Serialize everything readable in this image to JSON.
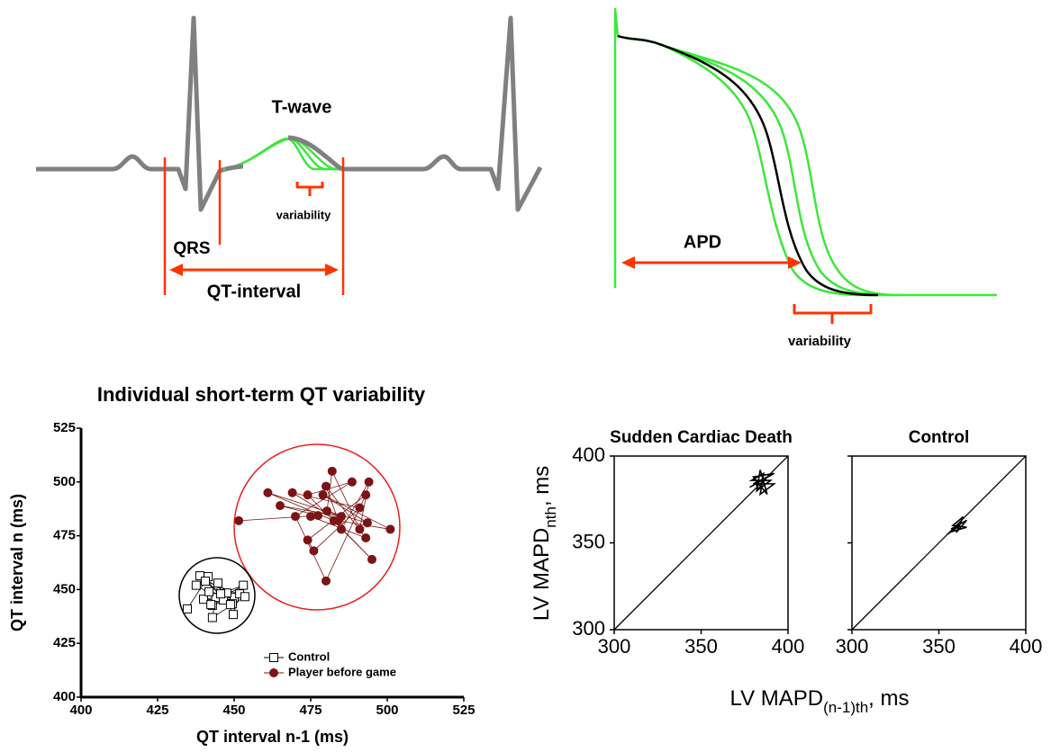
{
  "diagrams": {
    "ecg": {
      "wave_label": "T-wave",
      "variability_label": "variability",
      "qrs_label": "QRS",
      "interval_label": "QT-interval"
    },
    "action_potential": {
      "duration_label": "APD",
      "variability_label": "variability"
    }
  },
  "chart_data": [
    {
      "type": "scatter",
      "title": "Individual short-term QT variability",
      "xlabel": "QT interval n-1 (ms)",
      "ylabel": "QT interval n (ms)",
      "xlim": [
        400,
        525
      ],
      "ylim": [
        400,
        525
      ],
      "xticks": [
        400,
        425,
        450,
        475,
        500,
        525
      ],
      "yticks": [
        400,
        425,
        450,
        475,
        500,
        525
      ],
      "connected": true,
      "series": [
        {
          "name": "Control",
          "marker": "square",
          "color": "#000000",
          "x": [
            434.7,
            441.5,
            437.6,
            444,
            440,
            446.5,
            441.8,
            450,
            442.9,
            447.6,
            438.8,
            449.4,
            445.6,
            453,
            442.4,
            451.8,
            449.7,
            444.7,
            442.9,
            453.5,
            440.6,
            448.8
          ],
          "values": [
            441,
            456,
            452,
            446.3,
            445.5,
            445.1,
            449,
            446.3,
            442.6,
            448.4,
            456.4,
            443.4,
            448,
            452,
            443,
            448,
            438.4,
            453,
            437,
            446.7,
            453.9,
            443
          ]
        },
        {
          "name": "Player before game",
          "marker": "circle",
          "color": "#7b1414",
          "x": [
            451.5,
            477.4,
            465,
            485,
            461,
            482.6,
            495,
            474,
            488.5,
            470,
            480,
            493,
            474,
            476,
            491,
            469,
            484,
            501,
            479,
            493.5,
            480.3,
            482,
            491,
            494,
            485,
            480,
            493,
            475
          ],
          "values": [
            482,
            484.4,
            489,
            484,
            495,
            482,
            464,
            494,
            500,
            484,
            454,
            494,
            473,
            468,
            488,
            495,
            482,
            478,
            494,
            481,
            486.5,
            505,
            478,
            500,
            478,
            498,
            474,
            484
          ]
        }
      ]
    },
    {
      "type": "line",
      "title": "Sudden Cardiac Death",
      "ylabel": [
        "LV MAPD",
        "nth",
        ", ms"
      ],
      "xlim": [
        300,
        400
      ],
      "ylim": [
        300,
        400
      ],
      "xticks": [
        300,
        350,
        400
      ],
      "yticks": [
        300,
        350,
        400
      ],
      "series": [
        {
          "color": "#000000",
          "x": [
            378,
            392,
            380,
            388,
            384,
            382,
            390,
            379,
            386,
            384,
            392,
            380,
            388,
            383,
            381
          ],
          "values": [
            382,
            390,
            388,
            378,
            392,
            380,
            386,
            386,
            390,
            378,
            384,
            384,
            388,
            381,
            385
          ]
        }
      ]
    },
    {
      "type": "line",
      "title": "Control",
      "xlabel": [
        "LV MAPD",
        "(n-1)th",
        ", ms"
      ],
      "xlim": [
        300,
        400
      ],
      "ylim": [
        300,
        400
      ],
      "xticks": [
        300,
        350,
        400
      ],
      "series": [
        {
          "color": "#000000",
          "x": [
            355,
            362,
            357,
            366,
            360,
            364,
            358,
            366,
            356
          ],
          "values": [
            355,
            360,
            358,
            363,
            356,
            365,
            360,
            359,
            356
          ]
        }
      ]
    }
  ]
}
